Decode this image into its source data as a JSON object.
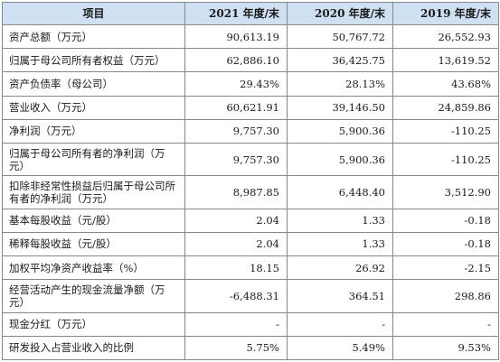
{
  "header": {
    "item": "项目",
    "y2021": "2021 年度/末",
    "y2020": "2020 年度/末",
    "y2019": "2019 年度/末"
  },
  "rows": [
    {
      "label": "资产总额（万元）",
      "v2021": "90,613.19",
      "v2020": "50,767.72",
      "v2019": "26,552.93"
    },
    {
      "label": "归属于母公司所有者权益（万元）",
      "v2021": "62,886.10",
      "v2020": "36,425.75",
      "v2019": "13,619.52"
    },
    {
      "label": "资产负债率（母公司）",
      "v2021": "29.43%",
      "v2020": "28.13%",
      "v2019": "43.68%"
    },
    {
      "label": "营业收入（万元）",
      "v2021": "60,621.91",
      "v2020": "39,146.50",
      "v2019": "24,859.86"
    },
    {
      "label": "净利润（万元）",
      "v2021": "9,757.30",
      "v2020": "5,900.36",
      "v2019": "-110.25"
    },
    {
      "label": "归属于母公司所有者的净利润（万元）",
      "v2021": "9,757.30",
      "v2020": "5,900.36",
      "v2019": "-110.25"
    },
    {
      "label": "扣除非经常性损益后归属于母公司所有者的净利润（万元）",
      "v2021": "8,987.85",
      "v2020": "6,448.40",
      "v2019": "3,512.90"
    },
    {
      "label": "基本每股收益（元/股）",
      "v2021": "2.04",
      "v2020": "1.33",
      "v2019": "-0.18"
    },
    {
      "label": "稀释每股收益（元/股）",
      "v2021": "2.04",
      "v2020": "1.33",
      "v2019": "-0.18"
    },
    {
      "label": "加权平均净资产收益率（%）",
      "v2021": "18.15",
      "v2020": "26.92",
      "v2019": "-2.15"
    },
    {
      "label": "经营活动产生的现金流量净额（万元）",
      "v2021": "-6,488.31",
      "v2020": "364.51",
      "v2019": "298.86"
    },
    {
      "label": "现金分红（万元）",
      "v2021": "-",
      "v2020": "-",
      "v2019": "-"
    },
    {
      "label": "研发投入占营业收入的比例",
      "v2021": "5.75%",
      "v2020": "5.49%",
      "v2019": "9.53%"
    }
  ]
}
